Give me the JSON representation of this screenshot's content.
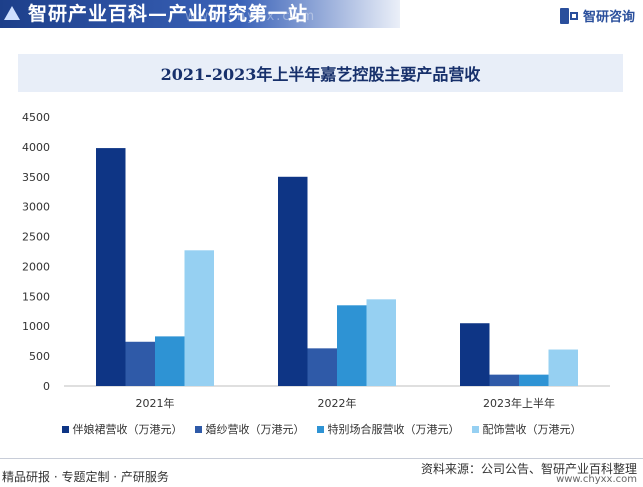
{
  "header": {
    "title": "智研产业百科—产业研究第一站",
    "watermark": "www.chyxx.com",
    "brand": "智研咨询"
  },
  "chart_data": {
    "type": "bar",
    "title": "2021-2023年上半年嘉艺控股主要产品营收",
    "categories": [
      "2021年",
      "2022年",
      "2023年上半年"
    ],
    "series": [
      {
        "name": "伴娘裙营收（万港元）",
        "values": [
          3980,
          3500,
          1050
        ],
        "color": "#0e3585"
      },
      {
        "name": "婚纱营收（万港元）",
        "values": [
          740,
          630,
          190
        ],
        "color": "#2f5aa8"
      },
      {
        "name": "特别场合服营收（万港元）",
        "values": [
          830,
          1350,
          190
        ],
        "color": "#2e93d4"
      },
      {
        "name": "配饰营收（万港元）",
        "values": [
          2270,
          1450,
          610
        ],
        "color": "#96d0f2"
      }
    ],
    "ylim": [
      0,
      4500
    ],
    "yticks": [
      "0",
      "500",
      "1000",
      "1500",
      "2000",
      "2500",
      "3000",
      "3500",
      "4000",
      "4500"
    ],
    "grid": false,
    "legend": "bottom"
  },
  "footer": {
    "left": "精品研报 · 专题定制 · 产研服务",
    "source": "资料来源：公司公告、智研产业百科整理",
    "url": "www.chyxx.com"
  }
}
